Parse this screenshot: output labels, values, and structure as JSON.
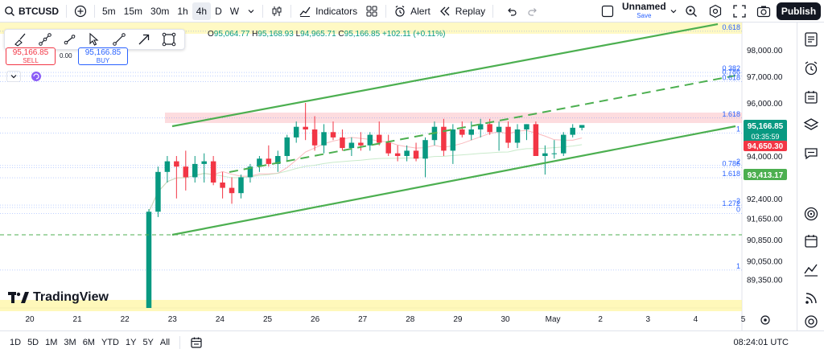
{
  "toolbar": {
    "symbol": "BTCUSD",
    "intervals": [
      "5m",
      "15m",
      "30m",
      "1h",
      "4h",
      "D",
      "W"
    ],
    "active_interval": "4h",
    "indicators_label": "Indicators",
    "alert_label": "Alert",
    "replay_label": "Replay",
    "layout_name": "Unnamed",
    "layout_sub": "Save",
    "publish_label": "Publish"
  },
  "legend": {
    "open_key": "O",
    "open": "95,064.77",
    "high_key": "H",
    "high": "95,168.93",
    "low_key": "L",
    "low": "94,965.71",
    "close_key": "C",
    "close": "95,166.85",
    "change": "+102.11 (+0.11%)"
  },
  "trade": {
    "sell_price": "95,166.85",
    "sell_label": "SELL",
    "spread": "0.00",
    "buy_price": "95,166.85",
    "buy_label": "BUY"
  },
  "price_axis": [
    {
      "label": "98,000.00",
      "value": 98000
    },
    {
      "label": "97,000.00",
      "value": 97000
    },
    {
      "label": "96,000.00",
      "value": 96000
    },
    {
      "label": "94,000.00",
      "value": 94000
    },
    {
      "label": "92,400.00",
      "value": 92400
    },
    {
      "label": "91,650.00",
      "value": 91650
    },
    {
      "label": "90,850.00",
      "value": 90850
    },
    {
      "label": "90,050.00",
      "value": 90050
    },
    {
      "label": "89,350.00",
      "value": 89350
    }
  ],
  "price_badges": {
    "current": "95,166.85",
    "countdown": "03:35:59",
    "red_level": "94,650.30",
    "green_level": "93,413.17"
  },
  "fib_labels": [
    {
      "label": "0.618",
      "value": 98700
    },
    {
      "label": "0.382",
      "value": 97150
    },
    {
      "label": "0.786",
      "value": 97020
    },
    {
      "label": "0.618",
      "value": 96800
    },
    {
      "label": "1.618",
      "value": 95430
    },
    {
      "label": "1",
      "value": 94860
    },
    {
      "label": "2",
      "value": 93640
    },
    {
      "label": "0.786",
      "value": 93560
    },
    {
      "label": "1.618",
      "value": 93180
    },
    {
      "label": "2",
      "value": 92150
    },
    {
      "label": "1.272",
      "value": 92060
    },
    {
      "label": "0",
      "value": 91840
    },
    {
      "label": "1",
      "value": 89700
    }
  ],
  "time_axis": [
    "20",
    "21",
    "22",
    "23",
    "24",
    "25",
    "26",
    "27",
    "28",
    "29",
    "30",
    "May",
    "2",
    "3",
    "4",
    "5"
  ],
  "bottom": {
    "ranges": [
      "1D",
      "5D",
      "1M",
      "3M",
      "6M",
      "YTD",
      "1Y",
      "5Y",
      "All"
    ],
    "clock": "08:24:01 UTC"
  },
  "brand": "TradingView",
  "colors": {
    "up": "#089981",
    "down": "#f23645",
    "channel": "#4caf50",
    "accent": "#2962ff"
  },
  "candles": [
    {
      "o": 88200,
      "h": 92000,
      "l": 88200,
      "c": 91900
    },
    {
      "o": 91900,
      "h": 93600,
      "l": 91700,
      "c": 93400
    },
    {
      "o": 93400,
      "h": 94000,
      "l": 93000,
      "c": 93800
    },
    {
      "o": 93800,
      "h": 94000,
      "l": 92400,
      "c": 93600
    },
    {
      "o": 93600,
      "h": 94200,
      "l": 92700,
      "c": 93200
    },
    {
      "o": 93200,
      "h": 94000,
      "l": 93000,
      "c": 93700
    },
    {
      "o": 93700,
      "h": 94100,
      "l": 93000,
      "c": 93800
    },
    {
      "o": 93800,
      "h": 94000,
      "l": 92900,
      "c": 93000
    },
    {
      "o": 93000,
      "h": 93400,
      "l": 92400,
      "c": 92800
    },
    {
      "o": 92800,
      "h": 93200,
      "l": 92200,
      "c": 92600
    },
    {
      "o": 92600,
      "h": 93300,
      "l": 92400,
      "c": 93200
    },
    {
      "o": 93200,
      "h": 93700,
      "l": 93000,
      "c": 93600
    },
    {
      "o": 93600,
      "h": 94000,
      "l": 93400,
      "c": 93900
    },
    {
      "o": 93900,
      "h": 94400,
      "l": 93600,
      "c": 93700
    },
    {
      "o": 93700,
      "h": 94200,
      "l": 93400,
      "c": 94000
    },
    {
      "o": 94000,
      "h": 94800,
      "l": 93800,
      "c": 94700
    },
    {
      "o": 94700,
      "h": 95300,
      "l": 94500,
      "c": 95100
    },
    {
      "o": 95100,
      "h": 96000,
      "l": 94600,
      "c": 95000
    },
    {
      "o": 95000,
      "h": 95500,
      "l": 94200,
      "c": 94400
    },
    {
      "o": 94400,
      "h": 95200,
      "l": 94100,
      "c": 94900
    },
    {
      "o": 94900,
      "h": 95300,
      "l": 94600,
      "c": 94700
    },
    {
      "o": 94700,
      "h": 95000,
      "l": 94200,
      "c": 94300
    },
    {
      "o": 94300,
      "h": 94700,
      "l": 94000,
      "c": 94500
    },
    {
      "o": 94500,
      "h": 94900,
      "l": 94200,
      "c": 94400
    },
    {
      "o": 94400,
      "h": 94900,
      "l": 94200,
      "c": 94800
    },
    {
      "o": 94800,
      "h": 95300,
      "l": 94400,
      "c": 94500
    },
    {
      "o": 94500,
      "h": 94800,
      "l": 94000,
      "c": 94100
    },
    {
      "o": 94100,
      "h": 94400,
      "l": 93800,
      "c": 94000
    },
    {
      "o": 94000,
      "h": 94400,
      "l": 93800,
      "c": 94200
    },
    {
      "o": 94200,
      "h": 94500,
      "l": 93800,
      "c": 93900
    },
    {
      "o": 93900,
      "h": 94700,
      "l": 93200,
      "c": 94600
    },
    {
      "o": 94600,
      "h": 95300,
      "l": 94400,
      "c": 95100
    },
    {
      "o": 95100,
      "h": 95400,
      "l": 94000,
      "c": 94200
    },
    {
      "o": 94200,
      "h": 95200,
      "l": 93700,
      "c": 95000
    },
    {
      "o": 95000,
      "h": 95300,
      "l": 94700,
      "c": 94800
    },
    {
      "o": 94800,
      "h": 95300,
      "l": 94600,
      "c": 95000
    },
    {
      "o": 95000,
      "h": 95400,
      "l": 94700,
      "c": 95200
    },
    {
      "o": 95200,
      "h": 95400,
      "l": 94800,
      "c": 94900
    },
    {
      "o": 94900,
      "h": 95300,
      "l": 94200,
      "c": 95100
    },
    {
      "o": 95100,
      "h": 95300,
      "l": 94300,
      "c": 94500
    },
    {
      "o": 94500,
      "h": 95200,
      "l": 94300,
      "c": 95000
    },
    {
      "o": 95000,
      "h": 95200,
      "l": 94600,
      "c": 95200
    },
    {
      "o": 95200,
      "h": 95300,
      "l": 94000,
      "c": 94000
    },
    {
      "o": 94000,
      "h": 94400,
      "l": 93300,
      "c": 94100
    },
    {
      "o": 94100,
      "h": 94600,
      "l": 93900,
      "c": 94100
    },
    {
      "o": 94100,
      "h": 94900,
      "l": 94000,
      "c": 94800
    },
    {
      "o": 94800,
      "h": 95200,
      "l": 94700,
      "c": 95064
    },
    {
      "o": 95064,
      "h": 95169,
      "l": 94966,
      "c": 95167
    }
  ]
}
